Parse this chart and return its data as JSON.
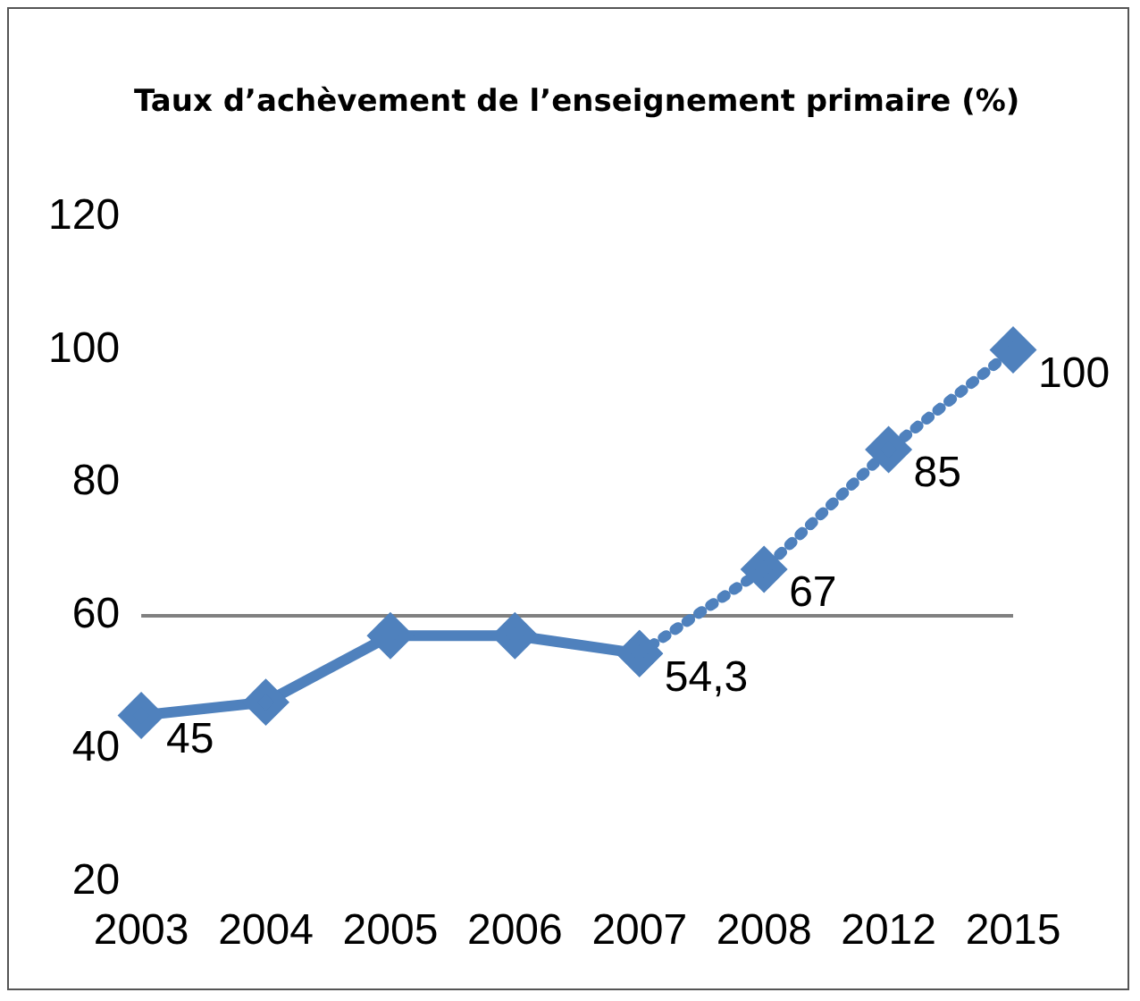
{
  "chart_data": {
    "type": "line",
    "title": "Taux d’achèvement de l’enseignement primaire (%)",
    "categories": [
      "2003",
      "2004",
      "2005",
      "2006",
      "2007",
      "2008",
      "2012",
      "2015"
    ],
    "series": [
      {
        "color": "#4f81bd",
        "line_style": "solid",
        "values": [
          45,
          47,
          57,
          57,
          54.3,
          null,
          null,
          null
        ],
        "value_labels": [
          "45",
          null,
          null,
          null,
          null,
          null,
          null,
          null
        ]
      },
      {
        "color": "#4f81bd",
        "line_style": "dotted",
        "values": [
          null,
          null,
          null,
          null,
          54.3,
          67,
          85,
          100
        ],
        "value_labels": [
          null,
          null,
          null,
          null,
          "54,3",
          "67",
          "85",
          "100"
        ]
      }
    ],
    "ylim": [
      20,
      120
    ],
    "yticks": [
      20,
      40,
      60,
      80,
      100,
      120
    ],
    "grid": false,
    "legend": false,
    "marker": "diamond",
    "ref_lines": [
      {
        "axis": "y",
        "value": 60,
        "color": "#808080"
      }
    ]
  }
}
